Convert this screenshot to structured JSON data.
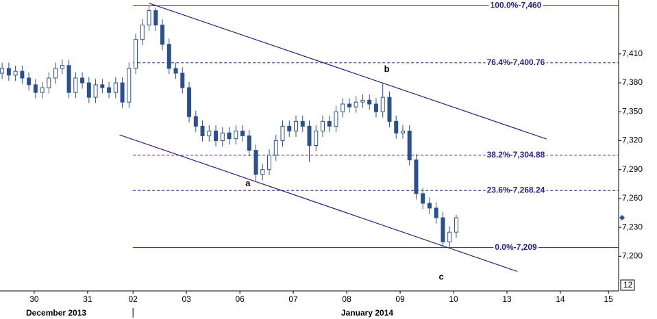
{
  "chart_data": {
    "type": "candlestick",
    "color": "#2b4f8f",
    "line_color": "#2a1d8a",
    "xlim": [
      -0.64,
      10.94
    ],
    "ylim": [
      7164,
      7466
    ],
    "xticks": [
      {
        "value": 0,
        "label": "30"
      },
      {
        "value": 1,
        "label": "31"
      },
      {
        "value": 1.85,
        "label": "02"
      },
      {
        "value": 2.85,
        "label": "03"
      },
      {
        "value": 3.85,
        "label": "06"
      },
      {
        "value": 4.85,
        "label": "07"
      },
      {
        "value": 5.85,
        "label": "08"
      },
      {
        "value": 6.85,
        "label": "09"
      },
      {
        "value": 7.85,
        "label": "10"
      },
      {
        "value": 8.85,
        "label": "13"
      },
      {
        "value": 9.85,
        "label": "14"
      },
      {
        "value": 10.75,
        "label": "15"
      }
    ],
    "yticks": [
      {
        "value": 7200,
        "label": "7,200"
      },
      {
        "value": 7230,
        "label": "7,230"
      },
      {
        "value": 7260,
        "label": "7,260"
      },
      {
        "value": 7290,
        "label": "7,290"
      },
      {
        "value": 7320,
        "label": "7,320"
      },
      {
        "value": 7350,
        "label": "7,350"
      },
      {
        "value": 7380,
        "label": "7,380"
      },
      {
        "value": 7410,
        "label": "7,410"
      }
    ],
    "months": [
      "December 2013",
      "January 2014"
    ],
    "corner_label": "12",
    "x": [
      -0.6,
      -0.475,
      -0.35,
      -0.225,
      -0.1,
      0.025,
      0.15,
      0.275,
      0.4,
      0.525,
      0.65,
      0.775,
      0.9,
      1.025,
      1.15,
      1.275,
      1.4,
      1.525,
      1.65,
      1.775,
      1.9,
      2.025,
      2.15,
      2.275,
      2.4,
      2.525,
      2.65,
      2.775,
      2.9,
      3.025,
      3.15,
      3.275,
      3.4,
      3.525,
      3.65,
      3.775,
      3.9,
      4.025,
      4.15,
      4.275,
      4.4,
      4.525,
      4.65,
      4.775,
      4.9,
      5.025,
      5.15,
      5.275,
      5.4,
      5.525,
      5.65,
      5.775,
      5.9,
      6.025,
      6.15,
      6.275,
      6.4,
      6.525,
      6.65,
      6.775,
      6.9,
      7.025,
      7.15,
      7.275,
      7.4,
      7.525,
      7.65,
      7.775,
      7.9
    ],
    "open": [
      7390,
      7395,
      7388,
      7392,
      7385,
      7378,
      7370,
      7375,
      7385,
      7395,
      7398,
      7370,
      7385,
      7380,
      7365,
      7378,
      7375,
      7370,
      7380,
      7360,
      7395,
      7425,
      7440,
      7455,
      7440,
      7420,
      7395,
      7390,
      7375,
      7345,
      7335,
      7325,
      7330,
      7320,
      7328,
      7322,
      7330,
      7325,
      7310,
      7285,
      7290,
      7305,
      7320,
      7335,
      7330,
      7340,
      7335,
      7315,
      7330,
      7340,
      7335,
      7350,
      7358,
      7355,
      7360,
      7362,
      7358,
      7350,
      7365,
      7340,
      7328,
      7330,
      7300,
      7265,
      7255,
      7250,
      7240,
      7215,
      7225
    ],
    "high": [
      7401,
      7401,
      7398,
      7398,
      7391,
      7384,
      7381,
      7391,
      7401,
      7404,
      7404,
      7391,
      7391,
      7386,
      7384,
      7384,
      7381,
      7386,
      7386,
      7401,
      7431,
      7446,
      7460,
      7458,
      7446,
      7426,
      7401,
      7396,
      7381,
      7351,
      7341,
      7336,
      7336,
      7334,
      7334,
      7336,
      7336,
      7331,
      7316,
      7296,
      7311,
      7326,
      7341,
      7341,
      7346,
      7346,
      7341,
      7336,
      7346,
      7346,
      7356,
      7364,
      7364,
      7366,
      7368,
      7368,
      7364,
      7380,
      7371,
      7346,
      7336,
      7336,
      7306,
      7271,
      7261,
      7256,
      7246,
      7231,
      7243
    ],
    "low": [
      7384,
      7382,
      7382,
      7379,
      7372,
      7364,
      7364,
      7369,
      7379,
      7389,
      7364,
      7364,
      7374,
      7359,
      7359,
      7369,
      7364,
      7364,
      7354,
      7354,
      7389,
      7419,
      7434,
      7434,
      7414,
      7389,
      7384,
      7369,
      7339,
      7329,
      7319,
      7319,
      7314,
      7314,
      7316,
      7316,
      7319,
      7304,
      7278,
      7279,
      7284,
      7299,
      7314,
      7324,
      7324,
      7329,
      7298,
      7309,
      7324,
      7329,
      7329,
      7344,
      7349,
      7349,
      7354,
      7352,
      7344,
      7344,
      7334,
      7322,
      7322,
      7294,
      7259,
      7249,
      7244,
      7234,
      7209,
      7209,
      7219
    ],
    "close": [
      7395,
      7388,
      7392,
      7385,
      7378,
      7370,
      7375,
      7385,
      7395,
      7398,
      7370,
      7385,
      7380,
      7365,
      7378,
      7375,
      7370,
      7380,
      7360,
      7395,
      7425,
      7440,
      7455,
      7440,
      7420,
      7395,
      7390,
      7375,
      7345,
      7335,
      7325,
      7330,
      7320,
      7328,
      7322,
      7330,
      7325,
      7310,
      7285,
      7290,
      7305,
      7320,
      7335,
      7330,
      7340,
      7335,
      7315,
      7330,
      7340,
      7335,
      7350,
      7358,
      7355,
      7360,
      7362,
      7358,
      7350,
      7365,
      7340,
      7328,
      7330,
      7300,
      7265,
      7255,
      7250,
      7240,
      7215,
      7225,
      7240
    ],
    "fib_levels": [
      {
        "value": 7460,
        "label": "100.0%-7,460",
        "solid": true
      },
      {
        "value": 7400.76,
        "label": "76.4%-7,400.76",
        "solid": false
      },
      {
        "value": 7304.88,
        "label": "38.2%-7,304.88",
        "solid": false
      },
      {
        "value": 7268.24,
        "label": "23.6%-7,268.24",
        "solid": false
      },
      {
        "value": 7209,
        "label": "0.0%-7,209",
        "solid": true
      }
    ],
    "fib_start": 1.85,
    "trendlines": [
      {
        "x": [
          2.15,
          9.59
        ],
        "y": [
          7462.7,
          7321.7
        ]
      },
      {
        "x": [
          1.6,
          9.04
        ],
        "y": [
          7326,
          7184.3
        ]
      }
    ],
    "annotations": [
      {
        "text": "a",
        "x": 4.0,
        "y": 7275
      },
      {
        "text": "b",
        "x": 6.6,
        "y": 7394
      },
      {
        "text": "c",
        "x": 7.62,
        "y": 7178
      }
    ]
  }
}
